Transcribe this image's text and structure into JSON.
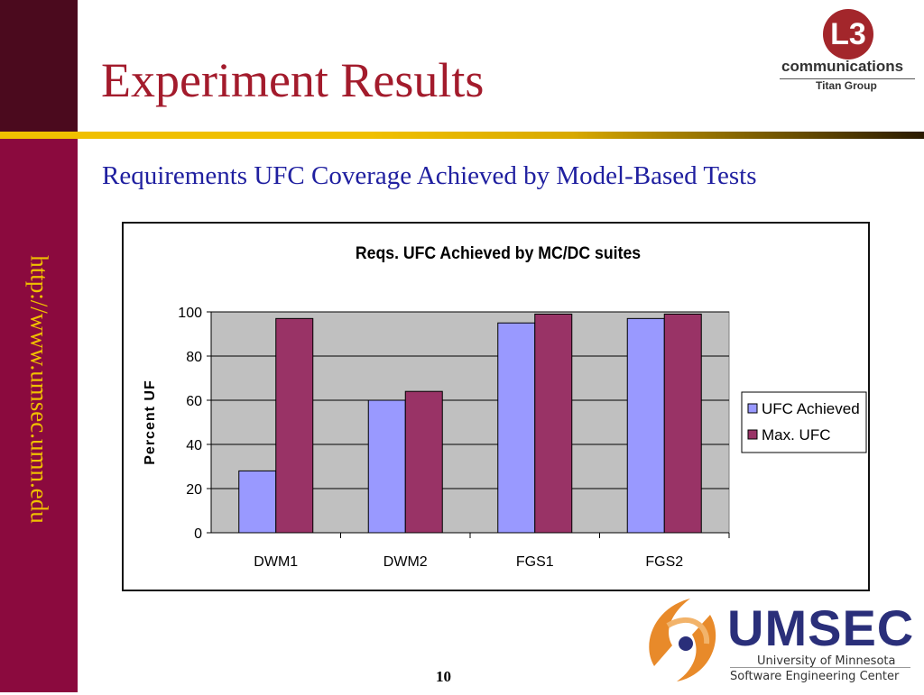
{
  "sidebar": {
    "url": "http://www.umsec.umn.edu"
  },
  "slide": {
    "title": "Experiment Results",
    "subtitle": "Requirements UFC Coverage Achieved by Model-Based Tests",
    "page_number": "10"
  },
  "logos": {
    "l3": {
      "mark": "L3",
      "word": "communications",
      "group": "Titan Group"
    },
    "umsec": {
      "name": "UMSEC",
      "line1": "University of Minnesota",
      "line2": "Software Engineering Center"
    }
  },
  "colors": {
    "sidebar": "#8b0a3e",
    "title": "#a31b2c",
    "subtitle": "#2020a0",
    "accent_gold": "#f0c000",
    "series_ufc_achieved": "#9999ff",
    "series_max_ufc": "#993366",
    "plot_background": "#c0c0c0"
  },
  "chart_data": {
    "type": "bar",
    "title": "Reqs. UFC Achieved by MC/DC suites",
    "xlabel": "",
    "ylabel": "Percent UF",
    "categories": [
      "DWM1",
      "DWM2",
      "FGS1",
      "FGS2"
    ],
    "series": [
      {
        "name": "UFC Achieved",
        "values": [
          28,
          60,
          95,
          97
        ],
        "color": "#9999ff"
      },
      {
        "name": "Max. UFC",
        "values": [
          97,
          64,
          99,
          99
        ],
        "color": "#993366"
      }
    ],
    "ylim": [
      0,
      100
    ],
    "yticks": [
      0,
      20,
      40,
      60,
      80,
      100
    ],
    "grid": true,
    "legend": "right"
  }
}
